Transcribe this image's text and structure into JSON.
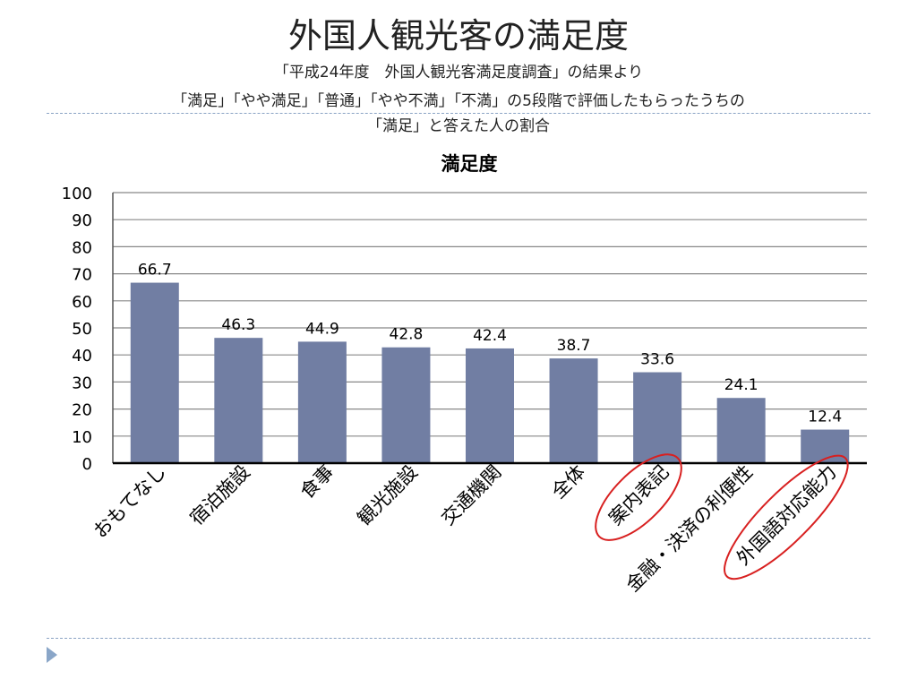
{
  "slide": {
    "title": "外国人観光客の満足度",
    "subtitle_line1": "「平成24年度　外国人観光客満足度調査」の結果より",
    "subtitle_line2": "「満足」「やや満足」「普通」「やや不満」「不満」の5段階で評価したもらったうちの",
    "subtitle_line3": "「満足」と答えた人の割合"
  },
  "chart_data": {
    "type": "bar",
    "title": "満足度",
    "categories": [
      "おもてなし",
      "宿泊施設",
      "食事",
      "観光施設",
      "交通機関",
      "全体",
      "案内表記",
      "金融・決済の利便性",
      "外国語対応能力"
    ],
    "values": [
      66.7,
      46.3,
      44.9,
      42.8,
      42.4,
      38.7,
      33.6,
      24.1,
      12.4
    ],
    "data_labels": [
      "66.7",
      "46.3",
      "44.9",
      "42.8",
      "42.4",
      "38.7",
      "33.6",
      "24.1",
      "12.4"
    ],
    "ylim": [
      0,
      100
    ],
    "yticks": [
      0,
      10,
      20,
      30,
      40,
      50,
      60,
      70,
      80,
      90,
      100
    ],
    "grid": true,
    "bar_color": "#717ea3",
    "highlighted_categories": [
      "案内表記",
      "外国語対応能力"
    ],
    "highlight_color": "#d82020"
  }
}
